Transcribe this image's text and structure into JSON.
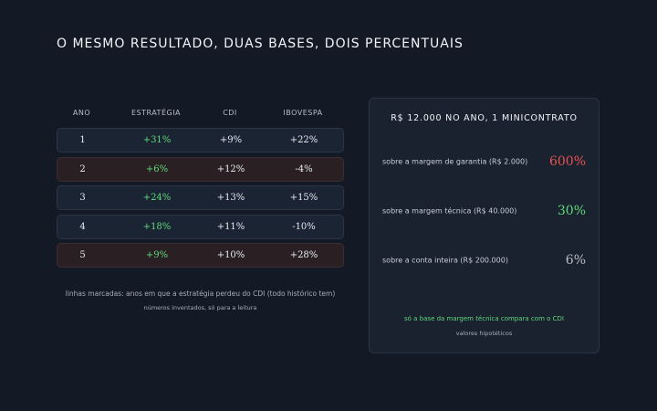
{
  "title": "O MESMO RESULTADO, DUAS BASES, DOIS PERCENTUAIS",
  "table": {
    "headers": [
      "ANO",
      "ESTRATÉGIA",
      "CDI",
      "IBOVESPA"
    ],
    "rows": [
      {
        "ano": "1",
        "estrategia": "+31%",
        "cdi": "+9%",
        "ibovespa": "+22%",
        "lost_to_cdi": false
      },
      {
        "ano": "2",
        "estrategia": "+6%",
        "cdi": "+12%",
        "ibovespa": "-4%",
        "lost_to_cdi": true
      },
      {
        "ano": "3",
        "estrategia": "+24%",
        "cdi": "+13%",
        "ibovespa": "+15%",
        "lost_to_cdi": false
      },
      {
        "ano": "4",
        "estrategia": "+18%",
        "cdi": "+11%",
        "ibovespa": "-10%",
        "lost_to_cdi": false
      },
      {
        "ano": "5",
        "estrategia": "+9%",
        "cdi": "+10%",
        "ibovespa": "+28%",
        "lost_to_cdi": true
      }
    ],
    "note": "linhas marcadas: anos em que a estratégia perdeu do CDI (todo histórico tem)",
    "note2": "números inventados, só para a leitura"
  },
  "panel": {
    "title": "R$ 12.000 NO ANO, 1 MINICONTRATO",
    "rows": [
      {
        "label": "sobre a margem de garantia (R$ 2.000)",
        "value": "600%",
        "color": "#e8534f"
      },
      {
        "label": "sobre a margem técnica (R$ 40.000)",
        "value": "30%",
        "color": "#5fd87a"
      },
      {
        "label": "sobre a conta inteira (R$ 200.000)",
        "value": "6%",
        "color": "#b9bec6"
      }
    ],
    "note": "só a base da margem técnica compara com o CDI",
    "note2": "valores hipotéticos"
  }
}
